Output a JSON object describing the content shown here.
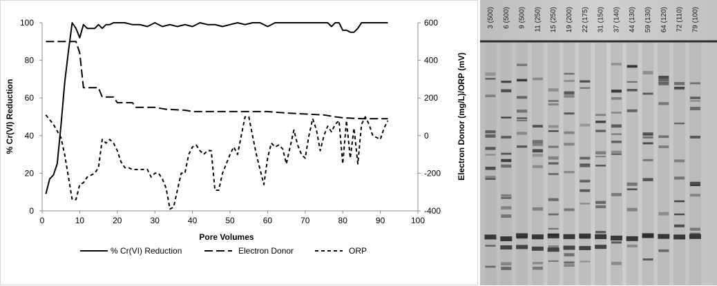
{
  "chart_data": {
    "type": "line",
    "xlabel": "Pore Volumes",
    "ylabel": "% Cr(VI) Reduction",
    "y2label": "Electron Donor (mg/L)/ORP (mV)",
    "xlim": [
      0,
      100
    ],
    "ylim": [
      0,
      100
    ],
    "y2lim": [
      -400,
      600
    ],
    "xticks": [
      "0",
      "10",
      "20",
      "30",
      "40",
      "50",
      "60",
      "70",
      "80",
      "90",
      "100"
    ],
    "yticks": [
      "0",
      "20",
      "40",
      "60",
      "80",
      "100"
    ],
    "y2ticks": [
      "-400",
      "-200",
      "0",
      "200",
      "400",
      "600"
    ],
    "grid": false,
    "legend_position": "bottom",
    "series": [
      {
        "name": "% Cr(VI) Reduction",
        "axis": "left",
        "style": "solid",
        "x": [
          1,
          2,
          3,
          4,
          5,
          6,
          7,
          8,
          9,
          10,
          11,
          12,
          13,
          14,
          15,
          16,
          17,
          18,
          19,
          20,
          22,
          24,
          26,
          28,
          30,
          32,
          34,
          36,
          38,
          40,
          42,
          44,
          46,
          48,
          50,
          52,
          54,
          56,
          58,
          60,
          62,
          64,
          66,
          68,
          70,
          72,
          74,
          76,
          77,
          78,
          79,
          80,
          81,
          82,
          83,
          84,
          85,
          86,
          88,
          90,
          92
        ],
        "y": [
          9,
          17,
          19,
          25,
          45,
          68,
          85,
          100,
          97,
          92,
          99,
          97,
          97,
          97,
          99,
          97,
          99,
          99,
          100,
          100,
          100,
          99,
          99,
          98,
          100,
          98,
          99,
          98,
          99,
          98,
          100,
          99,
          99,
          98,
          99,
          100,
          99,
          100,
          100,
          98,
          100,
          100,
          100,
          100,
          100,
          100,
          100,
          100,
          98,
          100,
          100,
          96,
          96,
          95,
          95,
          97,
          100,
          100,
          100,
          100,
          100
        ]
      },
      {
        "name": "Electron Donor",
        "axis": "right",
        "style": "long-dash",
        "x": [
          1,
          9,
          10,
          11,
          15,
          16,
          19,
          20,
          24,
          25,
          30,
          33,
          38,
          40,
          60,
          65,
          75,
          78,
          80,
          85,
          92
        ],
        "y": [
          500,
          500,
          440,
          255,
          255,
          205,
          205,
          175,
          175,
          150,
          150,
          140,
          135,
          128,
          128,
          120,
          110,
          100,
          95,
          90,
          90
        ]
      },
      {
        "name": "ORP",
        "axis": "right",
        "style": "short-dash",
        "x": [
          1,
          3,
          5,
          6,
          7,
          8,
          9,
          10,
          11,
          12,
          14,
          15,
          16,
          17,
          18,
          19,
          20,
          21,
          22,
          23,
          24,
          26,
          28,
          29,
          30,
          31,
          32,
          33,
          34,
          35,
          36,
          37,
          38,
          39,
          40,
          41,
          42,
          43,
          44,
          45,
          46,
          47,
          48,
          49,
          50,
          51,
          52,
          53,
          54,
          55,
          56,
          57,
          58,
          59,
          60,
          61,
          62,
          63,
          64,
          65,
          66,
          67,
          68,
          69,
          70,
          71,
          72,
          73,
          74,
          75,
          76,
          77,
          78,
          79,
          80,
          81,
          82,
          83,
          84,
          85,
          86,
          87,
          88,
          89,
          90,
          91,
          92
        ],
        "y": [
          110,
          60,
          -10,
          -100,
          -220,
          -340,
          -340,
          -260,
          -250,
          -220,
          -200,
          -170,
          -20,
          -40,
          -20,
          -40,
          -80,
          -140,
          -170,
          -170,
          -180,
          -180,
          -180,
          -220,
          -200,
          -200,
          -230,
          -280,
          -390,
          -380,
          -290,
          -200,
          -200,
          -100,
          -60,
          -50,
          -80,
          -100,
          -80,
          -80,
          -290,
          -290,
          -200,
          -150,
          -100,
          -60,
          -100,
          0,
          100,
          100,
          0,
          -100,
          -180,
          -260,
          -120,
          -40,
          -60,
          -50,
          -70,
          -150,
          -60,
          30,
          -50,
          -100,
          -120,
          0,
          90,
          30,
          -80,
          0,
          50,
          20,
          60,
          80,
          -150,
          80,
          -120,
          40,
          -150,
          60,
          100,
          60,
          0,
          -10,
          -20,
          40,
          80
        ]
      }
    ]
  },
  "gel_panel": {
    "lane_labels": [
      "3 (500)",
      "6 (500)",
      "9 (500)",
      "11 (250)",
      "15 (250)",
      "19 (200)",
      "22 (175)",
      "31 (150)",
      "37 (140)",
      "44 (130)",
      "59 (130)",
      "64 (120)",
      "72 (110)",
      "79 (100)"
    ]
  }
}
